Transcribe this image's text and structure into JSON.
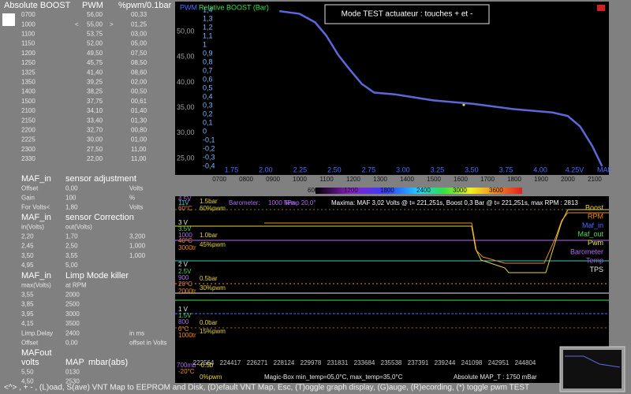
{
  "left_panel": {
    "header": [
      "Absolute BOOST",
      "PWM",
      "%pwm/0.1bar"
    ],
    "boost_table": [
      [
        "0700",
        "56,00",
        "00,33"
      ],
      [
        "1000",
        "55,00",
        "01,25"
      ],
      [
        "1100",
        "53,75",
        "03,00"
      ],
      [
        "1150",
        "52,00",
        "05,00"
      ],
      [
        "1200",
        "49,50",
        "07,50"
      ],
      [
        "1250",
        "45,75",
        "08,50"
      ],
      [
        "1325",
        "41,40",
        "08,60"
      ],
      [
        "1350",
        "39,25",
        "02,00"
      ],
      [
        "1400",
        "38,25",
        "00,50"
      ],
      [
        "1500",
        "37,75",
        "00,61"
      ],
      [
        "2100",
        "34,10",
        "01,40"
      ],
      [
        "2150",
        "33,40",
        "01,30"
      ],
      [
        "2200",
        "32,70",
        "00,80"
      ],
      [
        "2225",
        "30,00",
        "01,00"
      ],
      [
        "2300",
        "27,50",
        "11,00"
      ],
      [
        "2330",
        "22,00",
        "11,00"
      ]
    ],
    "cursor": [
      "<",
      ">"
    ],
    "maf_adjustment": {
      "title": [
        "MAF_in",
        "sensor adjustment"
      ],
      "rows": [
        [
          "Offset",
          "0,00",
          "Volts"
        ],
        [
          "Gain",
          "100",
          "%"
        ],
        [
          "For Volts<",
          "1,80",
          "Volts"
        ]
      ]
    },
    "maf_correction": {
      "title": [
        "MAF_in",
        "sensor Correction"
      ],
      "header": [
        "in(Volts)",
        "out(Volts)"
      ],
      "rows": [
        [
          "2,20",
          "1,70",
          "3,200"
        ],
        [
          "2,45",
          "2,50",
          "1,000"
        ],
        [
          "3,50",
          "3,55",
          "1,000"
        ],
        [
          "4,95",
          "5,00"
        ]
      ]
    },
    "limp_mode": {
      "title": [
        "MAF_in",
        "Limp Mode killer"
      ],
      "header": [
        "max(Volts)",
        "at RPM"
      ],
      "rows": [
        [
          "3,55",
          "2000"
        ],
        [
          "3,85",
          "2500"
        ],
        [
          "3,95",
          "3000"
        ],
        [
          "4,15",
          "3500"
        ],
        [
          "Limp.Delay",
          "2400",
          "in ms"
        ],
        [
          "Offset",
          "0,00",
          "offset in Volts"
        ]
      ]
    },
    "maf_out": {
      "title": [
        "MAFout"
      ],
      "header": [
        "volts",
        "MAP",
        "mbar(abs)"
      ],
      "rows": [
        [
          "5,50",
          "0130"
        ],
        [
          "4,50",
          "2530"
        ]
      ]
    }
  },
  "chart_data": {
    "type": "line",
    "title": "Mode TEST actuateur : touches + et  -",
    "y_label": "Relative BOOST (Bar)",
    "y2_label": "PWM",
    "x_label": "MAF",
    "color": "#5c68d8",
    "x": [
      2.1,
      2.245,
      2.36,
      2.44,
      2.53,
      2.61,
      2.7,
      2.79,
      2.94,
      3.22,
      3.51,
      3.8,
      4.09,
      4.2,
      4.29,
      4.38,
      4.45
    ],
    "values": [
      1.39,
      1.36,
      1.26,
      1.11,
      0.88,
      0.72,
      0.55,
      0.45,
      0.43,
      0.36,
      0.32,
      0.26,
      0.22,
      0.18,
      0.06,
      -0.17,
      -0.4
    ],
    "xlim": [
      1.34,
      4.5
    ],
    "ylim": [
      -0.5,
      1.5
    ],
    "y2lim": [
      21.74,
      55.9
    ],
    "x2lim": [
      535,
      2153
    ],
    "xticks": [
      1.75,
      {
        "value": 2,
        "label": "2.00"
      },
      2.25,
      {
        "value": 2.5,
        "label": "2.50"
      },
      2.75,
      {
        "value": 3,
        "label": "3.00"
      },
      3.25,
      {
        "value": 3.5,
        "label": "3.50"
      },
      3.75,
      {
        "value": 4,
        "label": "4.00"
      },
      {
        "value": 4.25,
        "label": "4.25V"
      }
    ],
    "yticks": [
      {
        "value": 1.4,
        "label": "1,4"
      },
      {
        "value": 1.3,
        "label": "1,3"
      },
      {
        "value": 1.2,
        "label": "1,2"
      },
      {
        "value": 1.1,
        "label": "1,1"
      },
      {
        "value": 1,
        "label": "1"
      },
      {
        "value": 0.9,
        "label": "0,9"
      },
      {
        "value": 0.8,
        "label": "0,8"
      },
      {
        "value": 0.7,
        "label": "0,7"
      },
      {
        "value": 0.6,
        "label": "0,6"
      },
      {
        "value": 0.5,
        "label": "0,5"
      },
      {
        "value": 0.4,
        "label": "0,4"
      },
      {
        "value": 0.3,
        "label": "0,3"
      },
      {
        "value": 0.2,
        "label": "0,2"
      },
      {
        "value": 0.1,
        "label": "0,1"
      },
      0,
      {
        "value": -0.1,
        "label": "-0,1"
      },
      {
        "value": -0.2,
        "label": "-0,2"
      },
      {
        "value": -0.3,
        "label": "-0,3"
      },
      {
        "value": -0.4,
        "label": "-0,4"
      }
    ],
    "y2ticks": [
      {
        "value": 50,
        "label": "50,00"
      },
      {
        "value": 45,
        "label": "45,00"
      },
      {
        "value": 40,
        "label": "40,00"
      },
      {
        "value": 35,
        "label": "35,00"
      },
      {
        "value": 30,
        "label": "30,00"
      },
      {
        "value": 25,
        "label": "25,00"
      }
    ],
    "x2ticks": [
      {
        "value": 700,
        "label": "0700"
      },
      {
        "value": 800,
        "label": "0800"
      },
      {
        "value": 900,
        "label": "0900"
      },
      1000,
      1100,
      1200,
      1300,
      1400,
      1500,
      1600,
      1700,
      1800,
      1900,
      2000,
      2100
    ]
  },
  "color_scale": {
    "labels": [
      600,
      1200,
      1800,
      2400,
      3000,
      3600
    ]
  },
  "bottom_graph": {
    "info": [
      "Barometer:",
      "1000 hPa",
      "Temp 20,0°",
      "Maxima:  MAF 3,02 Volts @ t=  221,251s, Boost 0,3 Bar @ t=  221,251s, max RPM : 2813"
    ],
    "left_labels": [
      "4.5V",
      "11V",
      "60°C",
      "1.5bar",
      "60%pwm",
      "3 V",
      "3.5V",
      "1000",
      "40°C",
      "3000tr",
      "1.0bar",
      "45%pwm",
      "2 V",
      "2.5V",
      "900",
      "20°C",
      "2000tr",
      "0.5bar",
      "30%pwm",
      "1 V",
      "1.5V",
      "800",
      "0°C",
      "1000tr",
      "0.0bar",
      "15%pwm",
      "700mb",
      "-0.5b",
      "-20°C",
      "0%pwm"
    ],
    "x_labels": [
      "222564",
      "224417",
      "226271",
      "228124",
      "229978",
      "231831",
      "233684",
      "235538",
      "237391",
      "239244",
      "241098",
      "242951",
      "244804"
    ],
    "legend": [
      {
        "name": "Boost",
        "color": "#e8d23a"
      },
      {
        "name": "RPM",
        "color": "#f08a1c"
      },
      {
        "name": "Maf_in",
        "color": "#4a6cff"
      },
      {
        "name": "Maf_out",
        "color": "#3ee04a"
      },
      {
        "name": "Pwm",
        "color": "#f2e84a"
      },
      {
        "name": "Barometer",
        "color": "#b06cf0"
      },
      {
        "name": "Temp",
        "color": "#9a5ad8"
      },
      {
        "name": "TPS",
        "color": "#e8e8e8"
      }
    ],
    "footer_info": [
      "Magic-Box  min_temp=05,0°C, max_temp=35,0°C",
      "Absolute MAP_T : 1750 mBar"
    ]
  },
  "footer": "<^> , + - , (L)oad, S(ave) VNT Map to EEPROM and Disk, (D)efault VNT Map, Esc, (T)oggle graph display, (G)auge, (R)ecording, (*) toggle pwm TEST"
}
